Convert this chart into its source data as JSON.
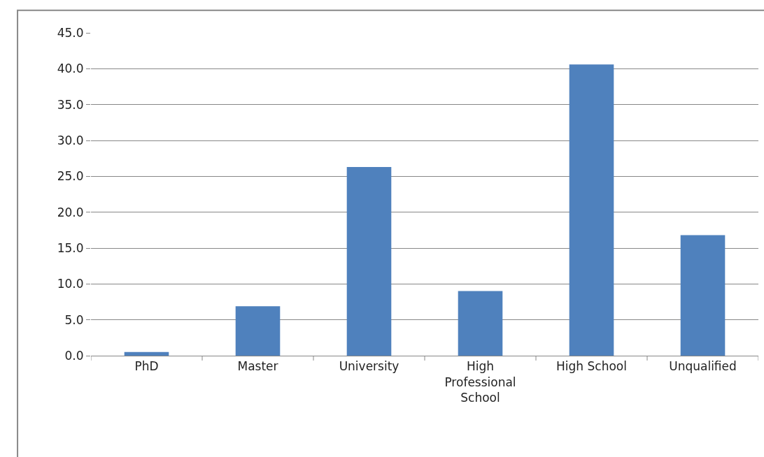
{
  "chart_data": {
    "type": "bar",
    "categories": [
      "PhD",
      "Master",
      "University",
      "High Professional School",
      "High School",
      "Unqualified"
    ],
    "values": [
      0.5,
      6.9,
      26.3,
      9.0,
      40.6,
      16.8
    ],
    "color": "#4f81bd",
    "ylim": [
      0,
      45
    ],
    "yticks": [
      {
        "value": 0,
        "label": "0.0"
      },
      {
        "value": 5,
        "label": "5.0"
      },
      {
        "value": 10,
        "label": "10.0"
      },
      {
        "value": 15,
        "label": "15.0"
      },
      {
        "value": 20,
        "label": "20.0"
      },
      {
        "value": 25,
        "label": "25.0"
      },
      {
        "value": 30,
        "label": "30.0"
      },
      {
        "value": 35,
        "label": "35.0"
      },
      {
        "value": 40,
        "label": "40.0"
      },
      {
        "value": 45,
        "label": "45.0"
      }
    ],
    "grid": "y"
  }
}
